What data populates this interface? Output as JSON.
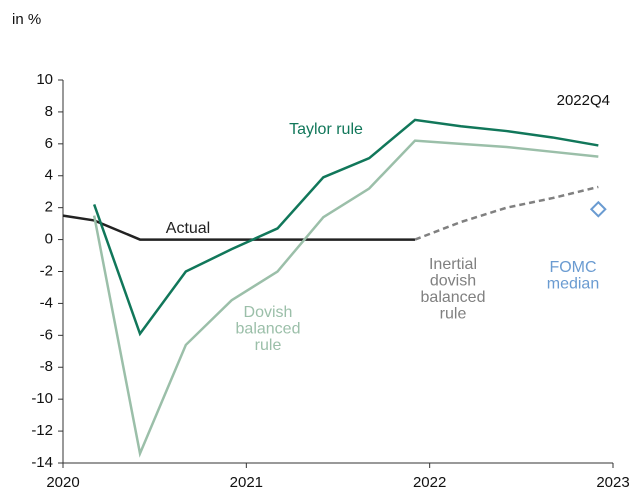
{
  "chart_data": {
    "type": "line",
    "unit_label": "in %",
    "corner_label": "2022Q4",
    "xlim": [
      2020,
      2023
    ],
    "xticks": [
      2020,
      2021,
      2022,
      2023
    ],
    "ylim": [
      -14,
      10
    ],
    "yticks": [
      -14,
      -12,
      -10,
      -8,
      -6,
      -4,
      -2,
      0,
      2,
      4,
      6,
      8,
      10
    ],
    "series": [
      {
        "label": [
          "Actual"
        ],
        "color": "#222222",
        "x": [
          2020,
          2020.17,
          2020.42,
          2020.67,
          2020.92,
          2021.17,
          2021.42,
          2021.67,
          2021.92
        ],
        "values": [
          1.5,
          1.2,
          0,
          0,
          0,
          0,
          0,
          0,
          0
        ]
      },
      {
        "label": [
          "Taylor rule"
        ],
        "color": "#11775a",
        "x": [
          2020.17,
          2020.42,
          2020.67,
          2020.92,
          2021.17,
          2021.42,
          2021.67,
          2021.92,
          2022.17,
          2022.42,
          2022.67,
          2022.92
        ],
        "values": [
          2.2,
          -5.9,
          -2.0,
          -0.6,
          0.7,
          3.9,
          5.1,
          7.5,
          7.1,
          6.8,
          6.4,
          5.9
        ]
      },
      {
        "label": [
          "Dovish",
          "balanced",
          "rule"
        ],
        "color": "#9bbfa9",
        "x": [
          2020.17,
          2020.42,
          2020.67,
          2020.92,
          2021.17,
          2021.42,
          2021.67,
          2021.92,
          2022.17,
          2022.42,
          2022.67,
          2022.92
        ],
        "values": [
          1.5,
          -13.4,
          -6.6,
          -3.8,
          -2.0,
          1.4,
          3.2,
          6.2,
          6.0,
          5.8,
          5.5,
          5.2
        ]
      },
      {
        "label": [
          "Inertial",
          "dovish",
          "balanced",
          "rule"
        ],
        "color": "#808080",
        "dash": true,
        "x": [
          2021.92,
          2022.17,
          2022.42,
          2022.67,
          2022.92
        ],
        "values": [
          0,
          1.1,
          2.0,
          2.6,
          3.3
        ]
      },
      {
        "label": [
          "FOMC",
          "median"
        ],
        "color": "#6a9bd1",
        "marker": "diamond",
        "x": [
          2022.92
        ],
        "values": [
          1.9
        ]
      }
    ]
  }
}
